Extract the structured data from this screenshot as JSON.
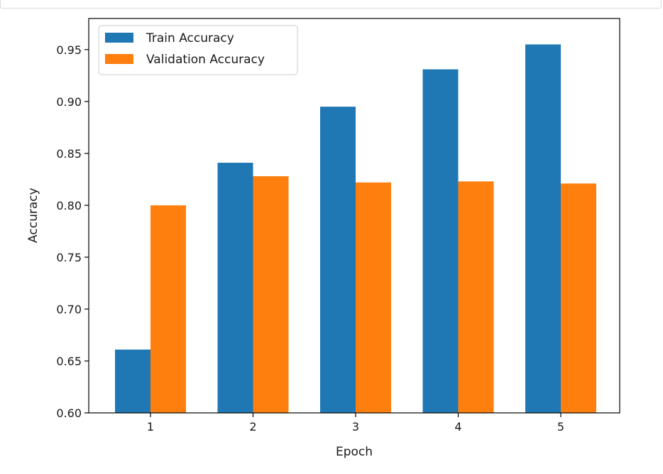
{
  "chart_data": {
    "type": "bar",
    "categories": [
      "1",
      "2",
      "3",
      "4",
      "5"
    ],
    "series": [
      {
        "name": "Train Accuracy",
        "color": "#1f77b4",
        "values": [
          0.661,
          0.841,
          0.895,
          0.931,
          0.955
        ]
      },
      {
        "name": "Validation Accuracy",
        "color": "#ff7f0e",
        "values": [
          0.8,
          0.828,
          0.822,
          0.823,
          0.821
        ]
      }
    ],
    "xlabel": "Epoch",
    "ylabel": "Accuracy",
    "ylim": [
      0.6,
      0.98
    ],
    "yticks": [
      "0.60",
      "0.65",
      "0.70",
      "0.75",
      "0.80",
      "0.85",
      "0.90",
      "0.95"
    ],
    "grid": false,
    "legend_position": "top-left"
  }
}
